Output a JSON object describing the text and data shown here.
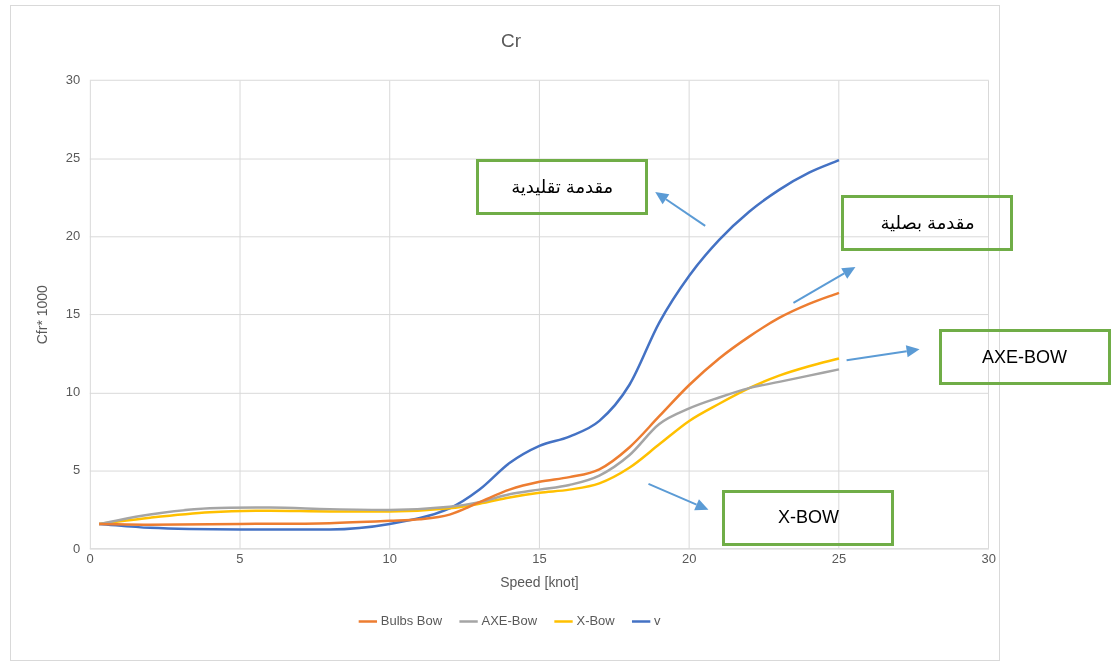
{
  "chart_data": {
    "type": "line",
    "title": "Cr",
    "xlabel": "Speed [knot]",
    "ylabel": "Cfr* 1000",
    "xlim": [
      0,
      30
    ],
    "xticks": [
      0,
      5,
      10,
      15,
      20,
      25,
      30
    ],
    "ylim": [
      0,
      30
    ],
    "yticks": [
      0,
      5,
      10,
      15,
      20,
      25,
      30
    ],
    "grid": true,
    "legend": "bottom",
    "marker": "none",
    "line_style": "solid",
    "series": [
      {
        "name": "Bulbs Bow",
        "color": "#ed7d31",
        "x": [
          0.3,
          2,
          5,
          8,
          10,
          11,
          12,
          13,
          14,
          15,
          16,
          17,
          18,
          19,
          20,
          21,
          22,
          23,
          24,
          25
        ],
        "values": [
          1.6,
          1.55,
          1.6,
          1.65,
          1.8,
          1.9,
          2.2,
          3.0,
          3.8,
          4.3,
          4.6,
          5.1,
          6.5,
          8.5,
          10.5,
          12.2,
          13.6,
          14.8,
          15.7,
          16.4
        ]
      },
      {
        "name": "AXE-Bow",
        "color": "#a5a5a5",
        "x": [
          0.3,
          2,
          4,
          6,
          8,
          10,
          12,
          13,
          14,
          15,
          16,
          17,
          18,
          19,
          20,
          21,
          22,
          23,
          24,
          25
        ],
        "values": [
          1.6,
          2.2,
          2.6,
          2.65,
          2.55,
          2.5,
          2.7,
          3.0,
          3.5,
          3.8,
          4.1,
          4.7,
          6.0,
          8.0,
          9.0,
          9.7,
          10.3,
          10.7,
          11.1,
          11.5
        ]
      },
      {
        "name": "X-Bow",
        "color": "#ffc000",
        "x": [
          0.3,
          2,
          4,
          6,
          8,
          10,
          12,
          13,
          14,
          15,
          16,
          17,
          18,
          19,
          20,
          21,
          22,
          23,
          24,
          25
        ],
        "values": [
          1.6,
          2.0,
          2.35,
          2.45,
          2.4,
          2.4,
          2.6,
          2.9,
          3.3,
          3.6,
          3.8,
          4.2,
          5.2,
          6.7,
          8.2,
          9.3,
          10.3,
          11.1,
          11.7,
          12.2
        ]
      },
      {
        "name": "v",
        "color": "#4472c4",
        "x": [
          0.3,
          2,
          5,
          8,
          10,
          12,
          13,
          14,
          15,
          16,
          17,
          18,
          19,
          20,
          21,
          22,
          23,
          24,
          25
        ],
        "values": [
          1.6,
          1.35,
          1.25,
          1.25,
          1.6,
          2.6,
          3.8,
          5.5,
          6.6,
          7.2,
          8.2,
          10.5,
          14.5,
          17.5,
          19.8,
          21.6,
          23.0,
          24.1,
          24.9
        ]
      }
    ],
    "annotations": [
      "مقدمة تقليدية",
      "مقدمة بصلية",
      "AXE-BOW",
      "X-BOW"
    ]
  }
}
